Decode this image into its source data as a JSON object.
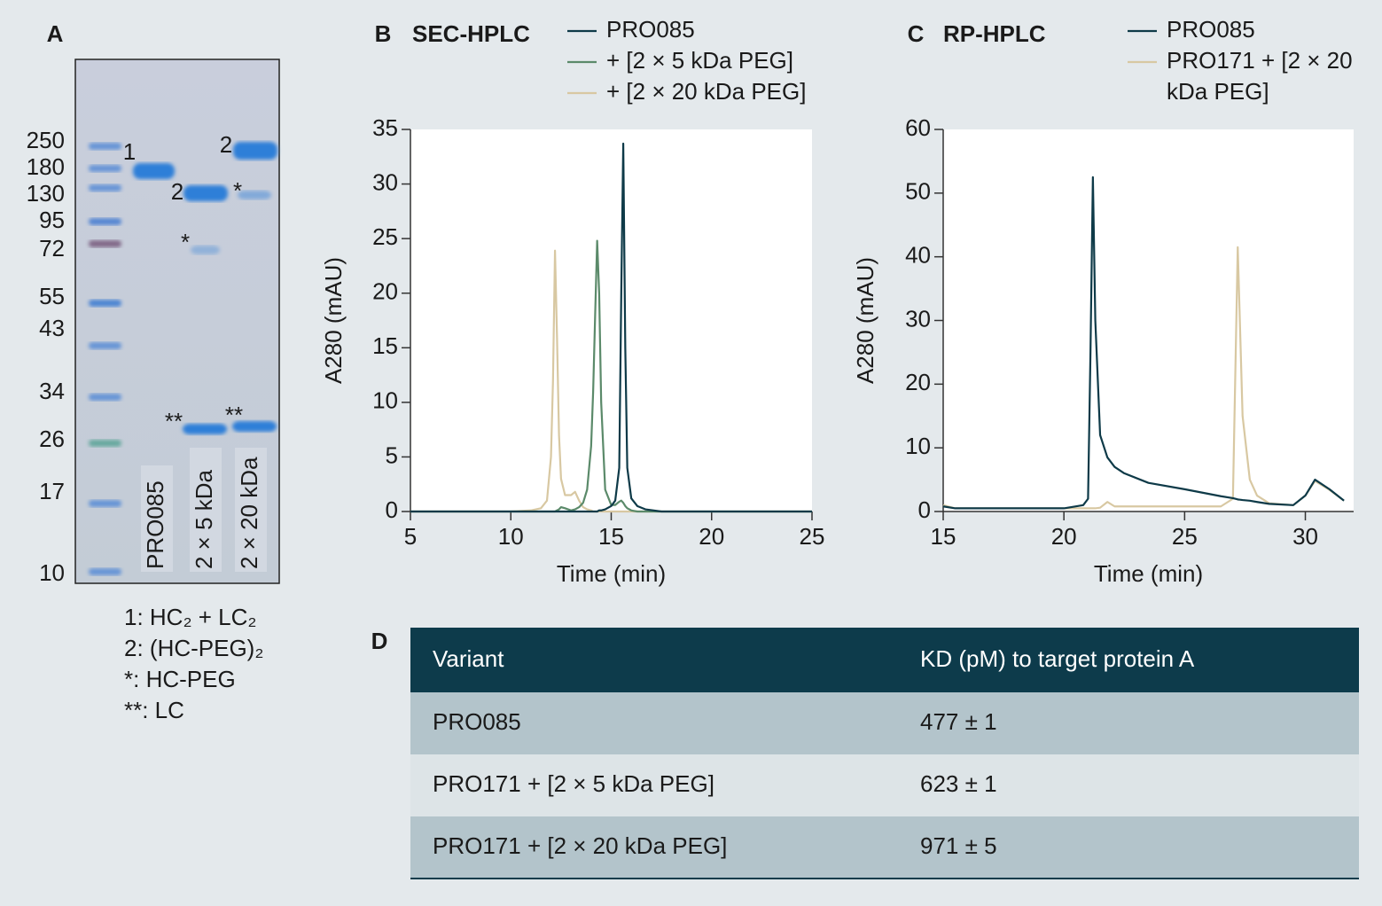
{
  "gel": {
    "panel_label": "A",
    "marker_labels": [
      250,
      180,
      130,
      95,
      72,
      55,
      43,
      34,
      26,
      17,
      10
    ],
    "band_labels": [
      "1",
      "2",
      "*",
      "**",
      "2",
      "*",
      "**"
    ],
    "lane_labels": [
      "PRO085",
      "2 × 5 kDa",
      "2 × 20 kDa"
    ],
    "legend": [
      "1: HC₂ + LC₂",
      "2: (HC-PEG)₂",
      "*: HC-PEG",
      "**: LC"
    ]
  },
  "chart_data": [
    {
      "type": "line",
      "panel_label": "B",
      "title": "SEC-HPLC",
      "x_label": "Time (min)",
      "y_label": "A280 (mAU)",
      "x": [
        5,
        8,
        10,
        11,
        11.5,
        11.8,
        12.0,
        12.1,
        12.2,
        12.3,
        12.4,
        12.5,
        12.7,
        13.0,
        13.2,
        13.4,
        13.6,
        13.8,
        14.0,
        14.1,
        14.2,
        14.3,
        14.4,
        14.5,
        14.7,
        15.0,
        15.2,
        15.4,
        15.5,
        15.6,
        15.7,
        15.8,
        16.0,
        16.3,
        16.7,
        17.5,
        20,
        25
      ],
      "series": [
        {
          "name": "+ [2 × 20 kDa PEG]",
          "color": "#d8c8a2",
          "values": [
            0,
            0,
            0,
            0.1,
            0.3,
            1,
            5,
            12,
            23.9,
            16,
            7,
            3,
            1.5,
            1.5,
            1.8,
            1,
            0.4,
            0.2,
            0.1,
            0,
            0,
            0,
            0,
            0,
            0,
            0,
            0,
            0,
            0,
            0,
            0,
            0,
            0,
            0,
            0,
            0,
            0,
            0
          ]
        },
        {
          "name": "+ [2 × 5 kDa PEG]",
          "color": "#5b8a6a",
          "values": [
            0,
            0,
            0,
            0,
            0,
            0,
            0,
            0,
            0,
            0.1,
            0.2,
            0.4,
            0.3,
            0.1,
            0.2,
            0.4,
            0.8,
            2,
            6,
            11,
            18,
            24.8,
            20,
            10,
            2,
            0.6,
            0.6,
            0.9,
            1,
            0.8,
            0.5,
            0.3,
            0.1,
            0,
            0,
            0,
            0,
            0
          ]
        },
        {
          "name": "PRO085",
          "color": "#0e3a48",
          "values": [
            0,
            0,
            0,
            0,
            0,
            0,
            0,
            0,
            0,
            0,
            0,
            0,
            0,
            0,
            0,
            0,
            0,
            0,
            0,
            0,
            0,
            0,
            0.1,
            0.1,
            0.2,
            0.5,
            1.0,
            4,
            20,
            33.7,
            15,
            4,
            1.2,
            0.5,
            0.2,
            0,
            0,
            0
          ]
        }
      ],
      "legend_order": [
        2,
        1,
        0
      ],
      "xlim": [
        5,
        25
      ],
      "xticks": [
        5,
        10,
        15,
        20,
        25
      ],
      "ylim": [
        0,
        35
      ],
      "yticks": [
        0,
        5,
        10,
        15,
        20,
        25,
        30,
        35
      ]
    },
    {
      "type": "line",
      "panel_label": "C",
      "title": "RP-HPLC",
      "x_label": "Time (min)",
      "y_label": "A280 (mAU)",
      "x": [
        15,
        15.5,
        16,
        20,
        20.8,
        21.0,
        21.1,
        21.2,
        21.3,
        21.5,
        21.8,
        22.1,
        22.5,
        23.5,
        25,
        26.5,
        27.0,
        27.2,
        27.4,
        27.7,
        28,
        28.5,
        29.5,
        30,
        30.4,
        31,
        31.6
      ],
      "series": [
        {
          "name": "PRO171 + [2 × 20 kDa PEG]",
          "color": "#d8c8a2",
          "values": [
            1,
            0.5,
            0.5,
            0.5,
            0.5,
            0.5,
            0.5,
            0.5,
            0.5,
            0.6,
            1.5,
            0.8,
            0.8,
            0.8,
            0.8,
            0.8,
            2,
            41.5,
            15,
            5,
            2.5,
            1.3,
            1,
            2.5,
            4.8,
            3.4,
            1.7
          ]
        },
        {
          "name": "PRO085",
          "color": "#0e3a48",
          "values": [
            0.8,
            0.5,
            0.5,
            0.5,
            1,
            2,
            25,
            52.5,
            30,
            12,
            8.5,
            7,
            6,
            4.5,
            3.5,
            2.4,
            2.1,
            1.9,
            1.8,
            1.7,
            1.5,
            1.2,
            1,
            2.5,
            5,
            3.5,
            1.7
          ]
        }
      ],
      "legend_order": [
        1,
        0
      ],
      "xlim": [
        15,
        32
      ],
      "xticks": [
        15,
        20,
        25,
        30
      ],
      "ylim": [
        0,
        60
      ],
      "yticks": [
        0,
        10,
        20,
        30,
        40,
        50,
        60
      ]
    }
  ],
  "table": {
    "panel_label": "D",
    "header": [
      "Variant",
      "KD (pM) to target protein A"
    ],
    "rows": [
      [
        "PRO085",
        "477 ± 1"
      ],
      [
        "PRO171 + [2 × 5 kDa PEG]",
        "623 ± 1"
      ],
      [
        "PRO171 + [2 × 20 kDa PEG]",
        "971 ± 5"
      ]
    ]
  }
}
